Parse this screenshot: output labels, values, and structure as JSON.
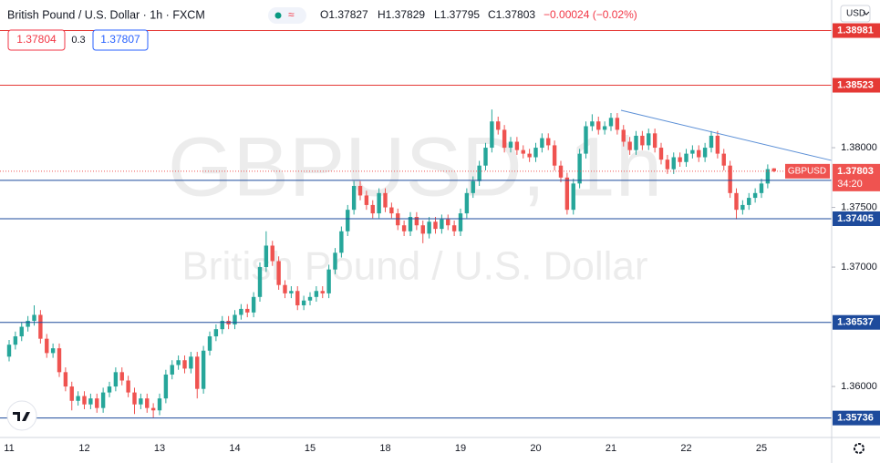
{
  "chart_data": {
    "type": "candlestick",
    "title": "British Pound / U.S. Dollar · 1h · FXCM",
    "ohlc_info": [
      "O1.37827",
      "H1.37829",
      "L1.37795",
      "C1.37803",
      "−0.00024 (−0.02%)"
    ],
    "sell_price": "1.37804",
    "spread": "0.3",
    "buy_price": "1.37807",
    "currency": "USD",
    "watermark": "GBPUSD, 1h",
    "watermark_name": "British Pound / U.S. Dollar",
    "symbol": "GBPUSD",
    "countdown": "34:20",
    "up_color": "#26a69a",
    "down_color": "#ef5350",
    "categories": [
      "11",
      null,
      null,
      null,
      null,
      null,
      null,
      null,
      null,
      null,
      null,
      null,
      "12",
      null,
      null,
      null,
      null,
      null,
      null,
      null,
      null,
      null,
      null,
      null,
      "13",
      null,
      null,
      null,
      null,
      null,
      null,
      null,
      null,
      null,
      null,
      null,
      "14",
      null,
      null,
      null,
      null,
      null,
      null,
      null,
      null,
      null,
      null,
      null,
      "15",
      null,
      null,
      null,
      null,
      null,
      null,
      null,
      null,
      null,
      null,
      null,
      "18",
      null,
      null,
      null,
      null,
      null,
      null,
      null,
      null,
      null,
      null,
      null,
      "19",
      null,
      null,
      null,
      null,
      null,
      null,
      null,
      null,
      null,
      null,
      null,
      "20",
      null,
      null,
      null,
      null,
      null,
      null,
      null,
      null,
      null,
      null,
      null,
      "21",
      null,
      null,
      null,
      null,
      null,
      null,
      null,
      null,
      null,
      null,
      null,
      "22",
      null,
      null,
      null,
      null,
      null,
      null,
      null,
      null,
      null,
      null,
      null,
      "25",
      null,
      null
    ],
    "open": [
      1.3625,
      1.3635,
      1.3642,
      1.365,
      1.3655,
      1.366,
      1.364,
      1.3628,
      1.3632,
      1.3612,
      1.36,
      1.3588,
      1.3592,
      1.3585,
      1.359,
      1.3582,
      1.3595,
      1.36,
      1.3612,
      1.3605,
      1.3595,
      1.3585,
      1.359,
      1.3582,
      1.358,
      1.359,
      1.361,
      1.3618,
      1.3622,
      1.3615,
      1.3625,
      1.3598,
      1.363,
      1.3642,
      1.3648,
      1.3655,
      1.3652,
      1.366,
      1.3665,
      1.3662,
      1.3675,
      1.37,
      1.3718,
      1.3705,
      1.3685,
      1.3678,
      1.368,
      1.3668,
      1.3672,
      1.3675,
      1.368,
      1.3678,
      1.3698,
      1.3712,
      1.373,
      1.3748,
      1.3768,
      1.376,
      1.3752,
      1.3745,
      1.3762,
      1.375,
      1.3745,
      1.3735,
      1.373,
      1.3742,
      1.3735,
      1.3728,
      1.3738,
      1.3732,
      1.374,
      1.3735,
      1.373,
      1.3745,
      1.3762,
      1.3772,
      1.3785,
      1.38,
      1.3822,
      1.3815,
      1.38,
      1.3805,
      1.3798,
      1.3795,
      1.3792,
      1.38,
      1.3808,
      1.3802,
      1.3785,
      1.3775,
      1.3748,
      1.377,
      1.3795,
      1.3818,
      1.3822,
      1.3815,
      1.3818,
      1.3825,
      1.3815,
      1.3805,
      1.3798,
      1.381,
      1.3802,
      1.3812,
      1.38,
      1.379,
      1.3782,
      1.3792,
      1.3788,
      1.3795,
      1.3798,
      1.3792,
      1.38,
      1.381,
      1.3795,
      1.3785,
      1.3762,
      1.3748,
      1.3752,
      1.3758,
      1.3762,
      1.377,
      1.37827
    ],
    "high": [
      1.3639,
      1.3646,
      1.3654,
      1.3659,
      1.3668,
      1.3664,
      1.3644,
      1.3636,
      1.3636,
      1.3616,
      1.3604,
      1.3596,
      1.3596,
      1.3594,
      1.3594,
      1.3599,
      1.3604,
      1.3616,
      1.3616,
      1.3609,
      1.3599,
      1.3594,
      1.3594,
      1.3586,
      1.3594,
      1.3614,
      1.3622,
      1.3626,
      1.3626,
      1.3629,
      1.3629,
      1.3634,
      1.3646,
      1.3652,
      1.3659,
      1.3659,
      1.3664,
      1.3669,
      1.3669,
      1.3679,
      1.3704,
      1.373,
      1.3722,
      1.3709,
      1.3689,
      1.3684,
      1.3684,
      1.3676,
      1.3679,
      1.3684,
      1.3684,
      1.3702,
      1.3716,
      1.3734,
      1.3752,
      1.3772,
      1.3772,
      1.3764,
      1.3756,
      1.3766,
      1.3766,
      1.3754,
      1.3749,
      1.3739,
      1.3746,
      1.3746,
      1.3739,
      1.3742,
      1.3742,
      1.3744,
      1.3744,
      1.3739,
      1.3749,
      1.3766,
      1.3776,
      1.3789,
      1.3804,
      1.3832,
      1.3826,
      1.3819,
      1.3809,
      1.3809,
      1.3802,
      1.3799,
      1.3804,
      1.3812,
      1.3812,
      1.3806,
      1.3789,
      1.3779,
      1.3774,
      1.3799,
      1.3822,
      1.3828,
      1.3826,
      1.3822,
      1.3829,
      1.3829,
      1.3819,
      1.3809,
      1.3814,
      1.3814,
      1.3816,
      1.3816,
      1.3804,
      1.3794,
      1.3796,
      1.3796,
      1.3799,
      1.3802,
      1.3802,
      1.3804,
      1.3814,
      1.3814,
      1.3799,
      1.3789,
      1.3766,
      1.3756,
      1.3762,
      1.3766,
      1.3774,
      1.3786,
      1.37829
    ],
    "low": [
      1.3621,
      1.3631,
      1.3638,
      1.3646,
      1.3651,
      1.3636,
      1.3624,
      1.3624,
      1.3608,
      1.3596,
      1.358,
      1.3584,
      1.3581,
      1.3581,
      1.3578,
      1.3578,
      1.3591,
      1.3596,
      1.3601,
      1.3591,
      1.3577,
      1.3581,
      1.3578,
      1.3574,
      1.3576,
      1.3586,
      1.3606,
      1.3614,
      1.3611,
      1.3611,
      1.359,
      1.3594,
      1.3626,
      1.3638,
      1.3644,
      1.3648,
      1.3648,
      1.3656,
      1.3658,
      1.3658,
      1.3671,
      1.3696,
      1.3701,
      1.3681,
      1.3674,
      1.3674,
      1.3664,
      1.3664,
      1.3668,
      1.3671,
      1.3674,
      1.3674,
      1.3694,
      1.3708,
      1.3726,
      1.3744,
      1.3756,
      1.3748,
      1.3741,
      1.3741,
      1.3746,
      1.3741,
      1.3731,
      1.3726,
      1.3726,
      1.3731,
      1.372,
      1.3724,
      1.3728,
      1.3728,
      1.3731,
      1.3726,
      1.3726,
      1.3741,
      1.3758,
      1.3768,
      1.3781,
      1.3796,
      1.3811,
      1.3796,
      1.3796,
      1.3794,
      1.3791,
      1.3788,
      1.3788,
      1.3796,
      1.3798,
      1.3781,
      1.3771,
      1.3744,
      1.3744,
      1.3766,
      1.3791,
      1.3814,
      1.3811,
      1.3811,
      1.3814,
      1.3811,
      1.3801,
      1.3794,
      1.3794,
      1.3798,
      1.3798,
      1.3796,
      1.3786,
      1.3778,
      1.3778,
      1.3784,
      1.3784,
      1.3791,
      1.3788,
      1.3788,
      1.3796,
      1.3791,
      1.3781,
      1.3758,
      1.374,
      1.3744,
      1.3748,
      1.3754,
      1.3758,
      1.3766,
      1.37795
    ],
    "close": [
      1.3635,
      1.3642,
      1.365,
      1.3655,
      1.366,
      1.364,
      1.3628,
      1.3632,
      1.3612,
      1.36,
      1.3588,
      1.3592,
      1.3585,
      1.359,
      1.3582,
      1.3595,
      1.36,
      1.3612,
      1.3605,
      1.3595,
      1.3585,
      1.359,
      1.3582,
      1.358,
      1.359,
      1.361,
      1.3618,
      1.3622,
      1.3615,
      1.3625,
      1.3598,
      1.363,
      1.3642,
      1.3648,
      1.3655,
      1.3652,
      1.366,
      1.3665,
      1.3662,
      1.3675,
      1.37,
      1.3718,
      1.3705,
      1.3685,
      1.3678,
      1.368,
      1.3668,
      1.3672,
      1.3675,
      1.368,
      1.3678,
      1.3698,
      1.3712,
      1.373,
      1.3748,
      1.3768,
      1.376,
      1.3752,
      1.3745,
      1.3762,
      1.375,
      1.3745,
      1.3735,
      1.373,
      1.3742,
      1.3735,
      1.3728,
      1.3738,
      1.3732,
      1.374,
      1.3735,
      1.373,
      1.3745,
      1.3762,
      1.3772,
      1.3785,
      1.38,
      1.3822,
      1.3815,
      1.38,
      1.3805,
      1.3798,
      1.3795,
      1.3792,
      1.38,
      1.3808,
      1.3802,
      1.3785,
      1.3775,
      1.3748,
      1.377,
      1.3795,
      1.3818,
      1.3822,
      1.3815,
      1.3818,
      1.3825,
      1.3815,
      1.3805,
      1.3798,
      1.381,
      1.3802,
      1.3812,
      1.38,
      1.379,
      1.3782,
      1.3792,
      1.3788,
      1.3795,
      1.3798,
      1.3792,
      1.38,
      1.381,
      1.3795,
      1.3785,
      1.3762,
      1.3748,
      1.3752,
      1.3758,
      1.3762,
      1.377,
      1.3782,
      1.37803
    ],
    "ylim": [
      1.35573,
      1.39237
    ],
    "yticks": [
      {
        "value": 1.38,
        "label": "1.38000"
      },
      {
        "value": 1.375,
        "label": "1.37500"
      },
      {
        "value": 1.37,
        "label": "1.37000"
      },
      {
        "value": 1.36,
        "label": "1.36000"
      }
    ],
    "levels": [
      {
        "value": 1.38981,
        "color": "#e53935"
      },
      {
        "value": 1.38523,
        "color": "#e53935"
      },
      {
        "value": 1.37727,
        "color": "#1e4b9c"
      },
      {
        "value": 1.37405,
        "color": "#1e4b9c"
      },
      {
        "value": 1.36537,
        "color": "#1e4b9c"
      },
      {
        "value": 1.35736,
        "color": "#1e4b9c"
      }
    ],
    "trendline": {
      "x": [
        97.6,
        131.2
      ],
      "y": [
        1.38313,
        1.37893
      ],
      "color": "#5b8fd6"
    }
  }
}
